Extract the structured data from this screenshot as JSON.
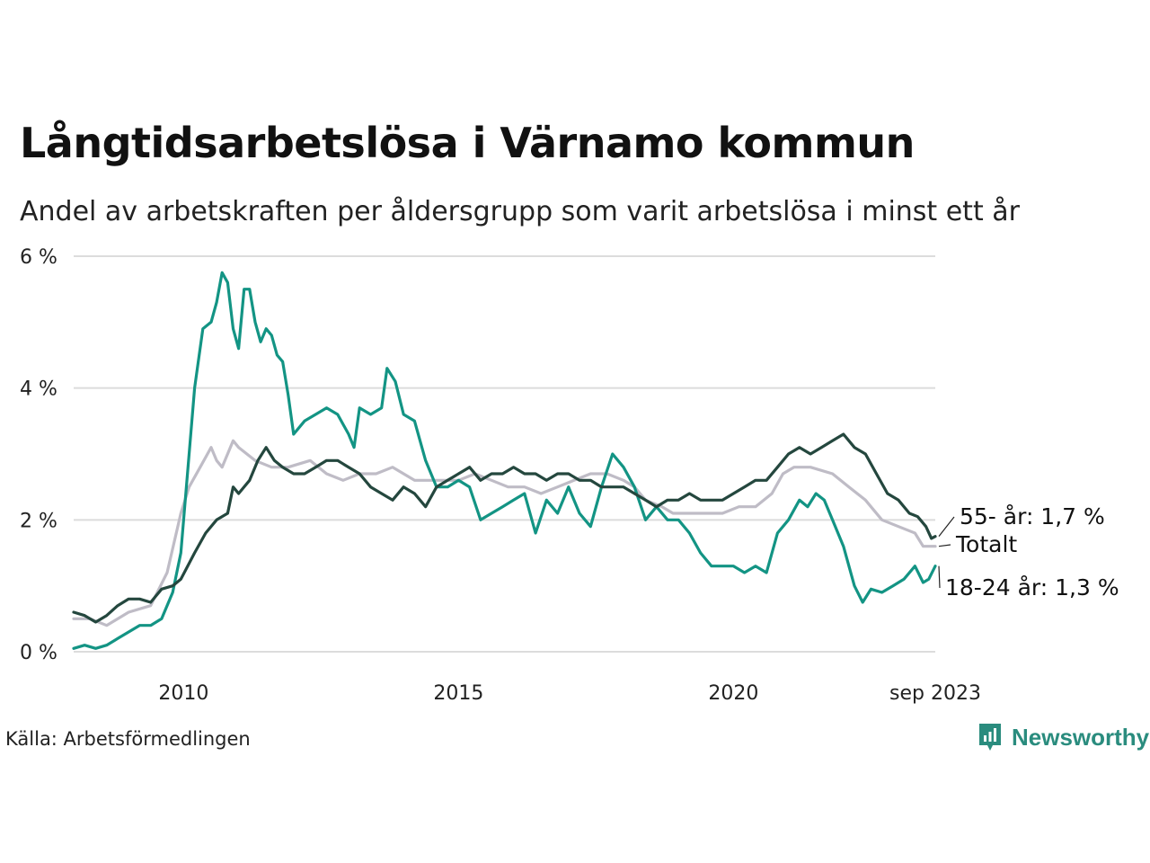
{
  "header": {
    "title": "Långtidsarbetslösa i Värnamo kommun",
    "subtitle": "Andel av arbetskraften per åldersgrupp som varit arbetslösa i minst ett år"
  },
  "footer": {
    "source": "Källa: Arbetsförmedlingen",
    "brand": "Newsworthy",
    "brand_icon": "newsworthy-logo-icon"
  },
  "colors": {
    "age_55": "#24473e",
    "total": "#bfbcc6",
    "age_18_24": "#139484",
    "grid": "#dcdcdc",
    "brand": "#2a8c7e"
  },
  "chart_data": {
    "type": "line",
    "title": "Långtidsarbetslösa i Värnamo kommun",
    "subtitle": "Andel av arbetskraften per åldersgrupp som varit arbetslösa i minst ett år",
    "xlabel": "",
    "ylabel": "",
    "x_range": [
      2008.0,
      2023.67
    ],
    "ylim": [
      0,
      6
    ],
    "x_ticks": [
      {
        "value": 2010,
        "label": "2010"
      },
      {
        "value": 2015,
        "label": "2015"
      },
      {
        "value": 2020,
        "label": "2020"
      },
      {
        "value": 2023.67,
        "label": "sep 2023"
      }
    ],
    "y_ticks": [
      {
        "value": 0,
        "label": "0 %"
      },
      {
        "value": 2,
        "label": "2 %"
      },
      {
        "value": 4,
        "label": "4 %"
      },
      {
        "value": 6,
        "label": "6 %"
      }
    ],
    "grid": true,
    "series": [
      {
        "name": "Totalt",
        "label": "Totalt",
        "color": "#bfbcc6",
        "points": [
          [
            2008.0,
            0.5
          ],
          [
            2008.3,
            0.5
          ],
          [
            2008.6,
            0.4
          ],
          [
            2009.0,
            0.6
          ],
          [
            2009.4,
            0.7
          ],
          [
            2009.7,
            1.2
          ],
          [
            2009.95,
            2.1
          ],
          [
            2010.1,
            2.5
          ],
          [
            2010.3,
            2.8
          ],
          [
            2010.5,
            3.1
          ],
          [
            2010.6,
            2.9
          ],
          [
            2010.7,
            2.8
          ],
          [
            2010.9,
            3.2
          ],
          [
            2011.0,
            3.1
          ],
          [
            2011.3,
            2.9
          ],
          [
            2011.6,
            2.8
          ],
          [
            2011.9,
            2.8
          ],
          [
            2012.3,
            2.9
          ],
          [
            2012.6,
            2.7
          ],
          [
            2012.9,
            2.6
          ],
          [
            2013.2,
            2.7
          ],
          [
            2013.5,
            2.7
          ],
          [
            2013.8,
            2.8
          ],
          [
            2014.2,
            2.6
          ],
          [
            2014.5,
            2.6
          ],
          [
            2014.8,
            2.6
          ],
          [
            2015.0,
            2.6
          ],
          [
            2015.3,
            2.7
          ],
          [
            2015.6,
            2.6
          ],
          [
            2015.9,
            2.5
          ],
          [
            2016.2,
            2.5
          ],
          [
            2016.5,
            2.4
          ],
          [
            2016.8,
            2.5
          ],
          [
            2017.1,
            2.6
          ],
          [
            2017.4,
            2.7
          ],
          [
            2017.7,
            2.7
          ],
          [
            2018.0,
            2.6
          ],
          [
            2018.2,
            2.5
          ],
          [
            2018.4,
            2.3
          ],
          [
            2018.7,
            2.2
          ],
          [
            2018.9,
            2.1
          ],
          [
            2019.2,
            2.1
          ],
          [
            2019.5,
            2.1
          ],
          [
            2019.8,
            2.1
          ],
          [
            2020.1,
            2.2
          ],
          [
            2020.4,
            2.2
          ],
          [
            2020.7,
            2.4
          ],
          [
            2020.9,
            2.7
          ],
          [
            2021.1,
            2.8
          ],
          [
            2021.4,
            2.8
          ],
          [
            2021.8,
            2.7
          ],
          [
            2022.1,
            2.5
          ],
          [
            2022.4,
            2.3
          ],
          [
            2022.7,
            2.0
          ],
          [
            2023.0,
            1.9
          ],
          [
            2023.3,
            1.8
          ],
          [
            2023.45,
            1.6
          ],
          [
            2023.67,
            1.6
          ]
        ]
      },
      {
        "name": "18-24 år",
        "label": "18-24 år: 1,3 %",
        "color": "#139484",
        "points": [
          [
            2008.0,
            0.05
          ],
          [
            2008.2,
            0.1
          ],
          [
            2008.4,
            0.05
          ],
          [
            2008.6,
            0.1
          ],
          [
            2008.8,
            0.2
          ],
          [
            2009.0,
            0.3
          ],
          [
            2009.2,
            0.4
          ],
          [
            2009.4,
            0.4
          ],
          [
            2009.6,
            0.5
          ],
          [
            2009.8,
            0.9
          ],
          [
            2009.95,
            1.5
          ],
          [
            2010.1,
            3.0
          ],
          [
            2010.2,
            4.0
          ],
          [
            2010.35,
            4.9
          ],
          [
            2010.5,
            5.0
          ],
          [
            2010.6,
            5.3
          ],
          [
            2010.7,
            5.75
          ],
          [
            2010.8,
            5.6
          ],
          [
            2010.9,
            4.9
          ],
          [
            2011.0,
            4.6
          ],
          [
            2011.1,
            5.5
          ],
          [
            2011.2,
            5.5
          ],
          [
            2011.3,
            5.0
          ],
          [
            2011.4,
            4.7
          ],
          [
            2011.5,
            4.9
          ],
          [
            2011.6,
            4.8
          ],
          [
            2011.7,
            4.5
          ],
          [
            2011.8,
            4.4
          ],
          [
            2011.9,
            3.9
          ],
          [
            2012.0,
            3.3
          ],
          [
            2012.2,
            3.5
          ],
          [
            2012.4,
            3.6
          ],
          [
            2012.6,
            3.7
          ],
          [
            2012.8,
            3.6
          ],
          [
            2013.0,
            3.3
          ],
          [
            2013.1,
            3.1
          ],
          [
            2013.2,
            3.7
          ],
          [
            2013.4,
            3.6
          ],
          [
            2013.6,
            3.7
          ],
          [
            2013.7,
            4.3
          ],
          [
            2013.85,
            4.1
          ],
          [
            2014.0,
            3.6
          ],
          [
            2014.2,
            3.5
          ],
          [
            2014.4,
            2.9
          ],
          [
            2014.6,
            2.5
          ],
          [
            2014.8,
            2.5
          ],
          [
            2015.0,
            2.6
          ],
          [
            2015.2,
            2.5
          ],
          [
            2015.4,
            2.0
          ],
          [
            2015.6,
            2.1
          ],
          [
            2015.8,
            2.2
          ],
          [
            2016.0,
            2.3
          ],
          [
            2016.2,
            2.4
          ],
          [
            2016.4,
            1.8
          ],
          [
            2016.6,
            2.3
          ],
          [
            2016.8,
            2.1
          ],
          [
            2017.0,
            2.5
          ],
          [
            2017.2,
            2.1
          ],
          [
            2017.4,
            1.9
          ],
          [
            2017.6,
            2.5
          ],
          [
            2017.8,
            3.0
          ],
          [
            2018.0,
            2.8
          ],
          [
            2018.2,
            2.5
          ],
          [
            2018.4,
            2.0
          ],
          [
            2018.6,
            2.2
          ],
          [
            2018.8,
            2.0
          ],
          [
            2019.0,
            2.0
          ],
          [
            2019.2,
            1.8
          ],
          [
            2019.4,
            1.5
          ],
          [
            2019.6,
            1.3
          ],
          [
            2019.8,
            1.3
          ],
          [
            2020.0,
            1.3
          ],
          [
            2020.2,
            1.2
          ],
          [
            2020.4,
            1.3
          ],
          [
            2020.6,
            1.2
          ],
          [
            2020.8,
            1.8
          ],
          [
            2021.0,
            2.0
          ],
          [
            2021.2,
            2.3
          ],
          [
            2021.35,
            2.2
          ],
          [
            2021.5,
            2.4
          ],
          [
            2021.65,
            2.3
          ],
          [
            2021.8,
            2.0
          ],
          [
            2022.0,
            1.6
          ],
          [
            2022.2,
            1.0
          ],
          [
            2022.35,
            0.75
          ],
          [
            2022.5,
            0.95
          ],
          [
            2022.7,
            0.9
          ],
          [
            2022.9,
            1.0
          ],
          [
            2023.1,
            1.1
          ],
          [
            2023.3,
            1.3
          ],
          [
            2023.45,
            1.05
          ],
          [
            2023.55,
            1.1
          ],
          [
            2023.67,
            1.3
          ]
        ]
      },
      {
        "name": "55- år",
        "label": "55- år: 1,7 %",
        "color": "#24473e",
        "points": [
          [
            2008.0,
            0.6
          ],
          [
            2008.2,
            0.55
          ],
          [
            2008.4,
            0.45
          ],
          [
            2008.6,
            0.55
          ],
          [
            2008.8,
            0.7
          ],
          [
            2009.0,
            0.8
          ],
          [
            2009.2,
            0.8
          ],
          [
            2009.4,
            0.75
          ],
          [
            2009.6,
            0.95
          ],
          [
            2009.8,
            1.0
          ],
          [
            2009.95,
            1.1
          ],
          [
            2010.2,
            1.5
          ],
          [
            2010.4,
            1.8
          ],
          [
            2010.6,
            2.0
          ],
          [
            2010.8,
            2.1
          ],
          [
            2010.9,
            2.5
          ],
          [
            2011.0,
            2.4
          ],
          [
            2011.2,
            2.6
          ],
          [
            2011.35,
            2.9
          ],
          [
            2011.5,
            3.1
          ],
          [
            2011.65,
            2.9
          ],
          [
            2011.8,
            2.8
          ],
          [
            2012.0,
            2.7
          ],
          [
            2012.2,
            2.7
          ],
          [
            2012.4,
            2.8
          ],
          [
            2012.6,
            2.9
          ],
          [
            2012.8,
            2.9
          ],
          [
            2013.0,
            2.8
          ],
          [
            2013.2,
            2.7
          ],
          [
            2013.4,
            2.5
          ],
          [
            2013.6,
            2.4
          ],
          [
            2013.8,
            2.3
          ],
          [
            2014.0,
            2.5
          ],
          [
            2014.2,
            2.4
          ],
          [
            2014.4,
            2.2
          ],
          [
            2014.6,
            2.5
          ],
          [
            2014.8,
            2.6
          ],
          [
            2015.0,
            2.7
          ],
          [
            2015.2,
            2.8
          ],
          [
            2015.4,
            2.6
          ],
          [
            2015.6,
            2.7
          ],
          [
            2015.8,
            2.7
          ],
          [
            2016.0,
            2.8
          ],
          [
            2016.2,
            2.7
          ],
          [
            2016.4,
            2.7
          ],
          [
            2016.6,
            2.6
          ],
          [
            2016.8,
            2.7
          ],
          [
            2017.0,
            2.7
          ],
          [
            2017.2,
            2.6
          ],
          [
            2017.4,
            2.6
          ],
          [
            2017.6,
            2.5
          ],
          [
            2017.8,
            2.5
          ],
          [
            2018.0,
            2.5
          ],
          [
            2018.2,
            2.4
          ],
          [
            2018.4,
            2.3
          ],
          [
            2018.6,
            2.2
          ],
          [
            2018.8,
            2.3
          ],
          [
            2019.0,
            2.3
          ],
          [
            2019.2,
            2.4
          ],
          [
            2019.4,
            2.3
          ],
          [
            2019.6,
            2.3
          ],
          [
            2019.8,
            2.3
          ],
          [
            2020.0,
            2.4
          ],
          [
            2020.2,
            2.5
          ],
          [
            2020.4,
            2.6
          ],
          [
            2020.6,
            2.6
          ],
          [
            2020.8,
            2.8
          ],
          [
            2021.0,
            3.0
          ],
          [
            2021.2,
            3.1
          ],
          [
            2021.4,
            3.0
          ],
          [
            2021.6,
            3.1
          ],
          [
            2021.8,
            3.2
          ],
          [
            2022.0,
            3.3
          ],
          [
            2022.2,
            3.1
          ],
          [
            2022.4,
            3.0
          ],
          [
            2022.6,
            2.7
          ],
          [
            2022.8,
            2.4
          ],
          [
            2023.0,
            2.3
          ],
          [
            2023.2,
            2.1
          ],
          [
            2023.35,
            2.05
          ],
          [
            2023.5,
            1.9
          ],
          [
            2023.6,
            1.72
          ],
          [
            2023.67,
            1.75
          ]
        ]
      }
    ]
  }
}
